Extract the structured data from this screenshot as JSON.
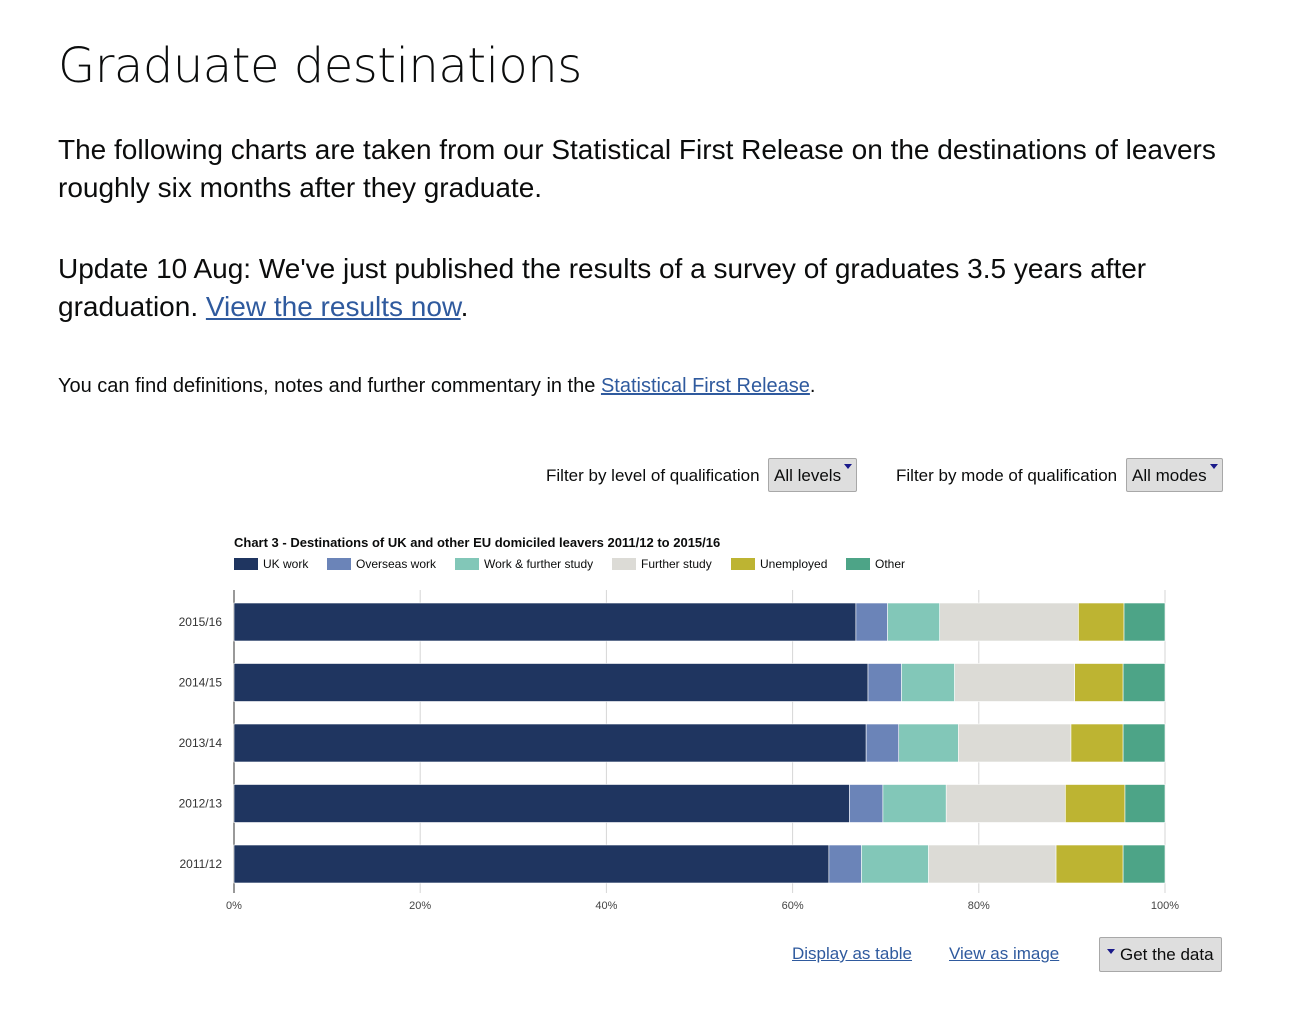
{
  "page": {
    "title": "Graduate destinations",
    "intro": "The following charts are taken from our Statistical First Release on the destinations of leavers roughly six months after they graduate.",
    "update_text": "Update 10 Aug: We've just published the results of a survey of graduates 3.5 years after graduation.",
    "update_link": "View the results now",
    "definitions_text": "You can find definitions, notes and further commentary in the",
    "definitions_link": "Statistical First Release"
  },
  "filters": {
    "level_label": "Filter by level of qualification",
    "level_value": "All levels",
    "mode_label": "Filter by mode of qualification",
    "mode_value": "All modes"
  },
  "footer": {
    "display_table": "Display as table",
    "view_image": "View as image",
    "get_data": "Get the data"
  },
  "colors": {
    "uk_work": "#1f3560",
    "overseas_work": "#6b84b8",
    "work_study": "#82c7b8",
    "further_study": "#dcdbd6",
    "unemployed": "#bdb432",
    "other": "#4da487",
    "link": "#2f5a9e"
  },
  "chart_data": {
    "type": "bar",
    "orientation": "horizontal",
    "stacked": true,
    "title": "Chart 3 - Destinations of UK and other EU domiciled leavers 2011/12 to 2015/16",
    "categories": [
      "2015/16",
      "2014/15",
      "2013/14",
      "2012/13",
      "2011/12"
    ],
    "series": [
      {
        "name": "UK work",
        "color": "#1f3560",
        "values": [
          66.8,
          68.1,
          67.9,
          66.1,
          63.9
        ]
      },
      {
        "name": "Overseas work",
        "color": "#6b84b8",
        "values": [
          3.4,
          3.6,
          3.5,
          3.6,
          3.5
        ]
      },
      {
        "name": "Work & further study",
        "color": "#82c7b8",
        "values": [
          5.6,
          5.7,
          6.4,
          6.8,
          7.2
        ]
      },
      {
        "name": "Further study",
        "color": "#dcdbd6",
        "values": [
          14.9,
          12.9,
          12.1,
          12.8,
          13.7
        ]
      },
      {
        "name": "Unemployed",
        "color": "#bdb432",
        "values": [
          4.9,
          5.2,
          5.6,
          6.4,
          7.2
        ]
      },
      {
        "name": "Other",
        "color": "#4da487",
        "values": [
          4.4,
          4.5,
          4.5,
          4.3,
          4.5
        ]
      }
    ],
    "x_ticks": [
      "0%",
      "20%",
      "40%",
      "60%",
      "80%",
      "100%"
    ],
    "xlim": [
      0,
      100
    ],
    "grid": true,
    "legend_position": "top-left"
  }
}
